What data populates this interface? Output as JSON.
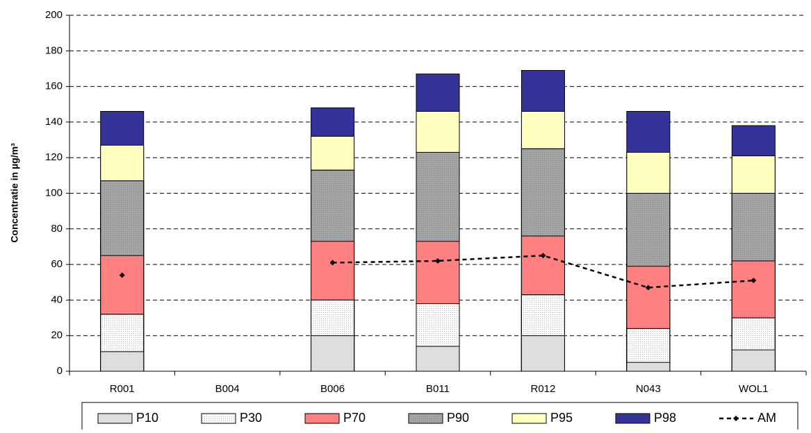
{
  "chart_data": {
    "type": "bar",
    "y_label": "Concentratie in µg/m³",
    "categories": [
      "R001",
      "B004",
      "B006",
      "B011",
      "R012",
      "N043",
      "WOL1"
    ],
    "ylim": [
      0,
      200
    ],
    "yticks": [
      0,
      20,
      40,
      60,
      80,
      100,
      120,
      140,
      160,
      180,
      200
    ],
    "grid": true,
    "series": [
      {
        "name": "P10",
        "color": "#dddddd",
        "texture": "solid",
        "values": [
          11,
          null,
          20,
          14,
          20,
          5,
          12
        ]
      },
      {
        "name": "P30",
        "color": "#ffffff",
        "texture": "dotted",
        "values": [
          32,
          null,
          40,
          38,
          43,
          24,
          30
        ]
      },
      {
        "name": "P70",
        "color": "#ff8080",
        "texture": "solid",
        "values": [
          65,
          null,
          73,
          73,
          76,
          59,
          62
        ]
      },
      {
        "name": "P90",
        "color": "#a6a6a6",
        "texture": "dotted",
        "values": [
          107,
          null,
          113,
          123,
          125,
          100,
          100
        ]
      },
      {
        "name": "P95",
        "color": "#ffffc0",
        "texture": "solid",
        "values": [
          127,
          null,
          132,
          146,
          146,
          123,
          121
        ]
      },
      {
        "name": "P98",
        "color": "#333399",
        "texture": "solid",
        "values": [
          146,
          null,
          148,
          167,
          169,
          146,
          138
        ]
      },
      {
        "name": "AM",
        "color": "#000000",
        "type": "line",
        "values": [
          54,
          null,
          61,
          62,
          65,
          47,
          51
        ]
      }
    ]
  }
}
